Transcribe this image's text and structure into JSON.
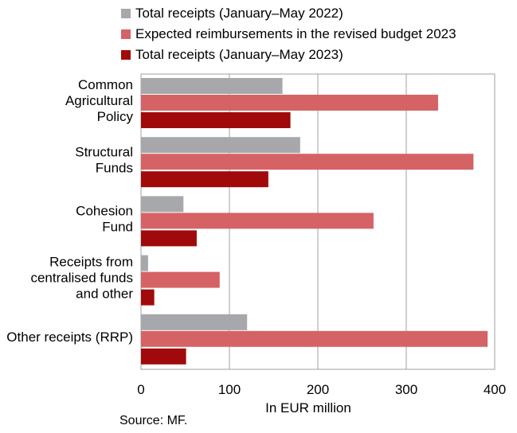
{
  "chart_data": {
    "type": "bar",
    "orientation": "horizontal",
    "categories": [
      [
        "Common",
        "Agricultural",
        "Policy"
      ],
      [
        "Structural",
        "Funds"
      ],
      [
        "Cohesion",
        "Fund"
      ],
      [
        "Receipts from",
        "centralised funds",
        "and other"
      ],
      [
        "Other receipts (RRP)"
      ]
    ],
    "series": [
      {
        "name": "Total receipts (January–May 2022)",
        "color": "#a6a8ac",
        "values": [
          160,
          180,
          48,
          8,
          120
        ]
      },
      {
        "name": "Expected reimbursements in the revised budget 2023",
        "color": "#d56366",
        "values": [
          336,
          376,
          263,
          89,
          392
        ]
      },
      {
        "name": "Total receipts (January–May 2023)",
        "color": "#a00a0a",
        "values": [
          169,
          144,
          63,
          15,
          51
        ]
      }
    ],
    "xlim": [
      0,
      400
    ],
    "xticks": [
      0,
      100,
      200,
      300,
      400
    ],
    "xlabel": "In EUR million",
    "grid": true,
    "legend_position": "top"
  },
  "source": "Source: MF."
}
